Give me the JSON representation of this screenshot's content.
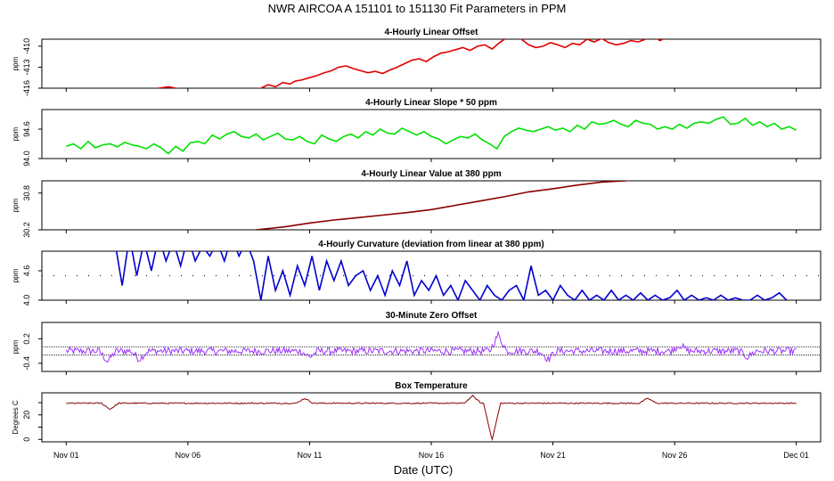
{
  "title": "NWR   AIRCOA A   151101 to 151130   Fit Parameters in PPM",
  "xlabel": "Date (UTC)",
  "colors": {
    "offset": "#e00000",
    "slope": "#00e000",
    "value": "#8b0000",
    "curvature": "#0000d0",
    "zero": "#9b30ff",
    "temp": "#8b0000",
    "axis": "#000000"
  },
  "chart_data": [
    {
      "id": "offset",
      "type": "line",
      "title": "4-Hourly Linear Offset",
      "ylabel": "ppm",
      "yticks": [
        -416,
        -413,
        -410
      ],
      "ytick_labels": [
        "-416",
        "-413",
        "-410"
      ],
      "ylim": [
        -416,
        -409
      ],
      "x": [
        3.5,
        3.8,
        4.2,
        4.5,
        4.8,
        5.0,
        7.5,
        7.7,
        8.0,
        8.3,
        8.6,
        8.9,
        9.2,
        9.4,
        9.7,
        10.0,
        10.3,
        10.6,
        10.9,
        11.2,
        11.5,
        11.8,
        12.1,
        12.4,
        12.7,
        13.0,
        13.3,
        13.6,
        13.9,
        14.2,
        14.5,
        14.8,
        15.1,
        15.4,
        15.7,
        16.0,
        16.3,
        16.6,
        16.9,
        17.2,
        17.5,
        17.8,
        18.1,
        18.4,
        18.7,
        19.0,
        19.3,
        19.6,
        19.9,
        20.2,
        20.5,
        20.8,
        21.1,
        21.4,
        21.7,
        22.0,
        22.3,
        22.6,
        22.9,
        23.2,
        23.5,
        23.8,
        24.1,
        24.4,
        24.7,
        25.0,
        25.5,
        26.0,
        27.0
      ],
      "y": [
        -417,
        -416,
        -415.8,
        -416,
        -416.3,
        -417,
        -417,
        -416.2,
        -416,
        -415.5,
        -415.8,
        -415.2,
        -415.4,
        -415.0,
        -414.8,
        -414.5,
        -414.2,
        -413.8,
        -413.5,
        -413.0,
        -412.8,
        -413.2,
        -413.5,
        -413.8,
        -413.6,
        -413.9,
        -413.4,
        -413.0,
        -412.5,
        -412.0,
        -411.8,
        -412.2,
        -411.5,
        -411.0,
        -410.8,
        -410.5,
        -410.2,
        -410.6,
        -410.0,
        -409.8,
        -410.4,
        -409.5,
        -408.8,
        -408.5,
        -409.0,
        -409.8,
        -410.2,
        -410.0,
        -409.5,
        -409.8,
        -410.2,
        -409.6,
        -409.8,
        -409.0,
        -409.4,
        -408.9,
        -409.5,
        -409.8,
        -409.6,
        -409.2,
        -409.4,
        -409.0,
        -408.5,
        -409.2,
        -408.7,
        -408.3,
        -408.7,
        -408.5,
        -408.9
      ]
    },
    {
      "id": "slope",
      "type": "line",
      "title": "4-Hourly Linear Slope * 50 ppm",
      "ylabel": "ppm",
      "yticks": [
        94.0,
        94.6
      ],
      "ytick_labels": [
        "94.0",
        "94.6"
      ],
      "ylim": [
        94.0,
        95.0
      ],
      "x": [
        0.0,
        0.3,
        0.6,
        0.9,
        1.2,
        1.5,
        1.8,
        2.1,
        2.4,
        2.7,
        3.0,
        3.3,
        3.6,
        3.9,
        4.2,
        4.5,
        4.8,
        5.1,
        5.4,
        5.7,
        6.0,
        6.3,
        6.6,
        6.9,
        7.2,
        7.5,
        7.8,
        8.1,
        8.4,
        8.7,
        9.0,
        9.3,
        9.6,
        9.9,
        10.2,
        10.5,
        10.8,
        11.1,
        11.4,
        11.7,
        12.0,
        12.3,
        12.6,
        12.9,
        13.2,
        13.5,
        13.8,
        14.1,
        14.4,
        14.7,
        15.0,
        15.3,
        15.6,
        15.9,
        16.2,
        16.5,
        16.8,
        17.1,
        17.4,
        17.7,
        18.0,
        18.3,
        18.6,
        18.9,
        19.2,
        19.5,
        19.8,
        20.1,
        20.4,
        20.7,
        21.0,
        21.3,
        21.6,
        21.9,
        22.2,
        22.5,
        22.8,
        23.1,
        23.4,
        23.7,
        24.0,
        24.3,
        24.6,
        24.9,
        25.2,
        25.5,
        25.8,
        26.1,
        26.4,
        26.7,
        27.0,
        27.3,
        27.6,
        27.9,
        28.2,
        28.5,
        28.8,
        29.1,
        29.4,
        29.7,
        30.0
      ],
      "y": [
        94.25,
        94.3,
        94.2,
        94.35,
        94.22,
        94.28,
        94.3,
        94.24,
        94.33,
        94.28,
        94.25,
        94.2,
        94.3,
        94.22,
        94.1,
        94.25,
        94.15,
        94.32,
        94.35,
        94.3,
        94.48,
        94.4,
        94.5,
        94.55,
        94.45,
        94.42,
        94.5,
        94.38,
        94.45,
        94.52,
        94.4,
        94.38,
        94.45,
        94.35,
        94.3,
        94.48,
        94.4,
        94.35,
        94.45,
        94.5,
        94.42,
        94.55,
        94.48,
        94.6,
        94.52,
        94.5,
        94.62,
        94.55,
        94.48,
        94.55,
        94.45,
        94.4,
        94.3,
        94.38,
        94.45,
        94.42,
        94.5,
        94.38,
        94.3,
        94.2,
        94.45,
        94.55,
        94.62,
        94.58,
        94.55,
        94.6,
        94.65,
        94.58,
        94.62,
        94.55,
        94.68,
        94.6,
        94.75,
        94.7,
        94.72,
        94.78,
        94.7,
        94.65,
        94.78,
        94.72,
        94.7,
        94.6,
        94.65,
        94.6,
        94.7,
        94.62,
        94.72,
        94.75,
        94.72,
        94.8,
        94.85,
        94.7,
        94.72,
        94.82,
        94.68,
        94.75,
        94.65,
        94.72,
        94.6,
        94.65,
        94.58
      ]
    },
    {
      "id": "value",
      "type": "line",
      "title": "4-Hourly Linear Value at 380 ppm",
      "ylabel": "ppm",
      "yticks": [
        30.2,
        30.8
      ],
      "ytick_labels": [
        "30.2",
        "30.8"
      ],
      "ylim": [
        30.2,
        31.0
      ],
      "x": [
        7.8,
        9.0,
        10.0,
        11.0,
        12.0,
        13.0,
        14.0,
        15.0,
        16.0,
        17.0,
        18.0,
        19.0,
        20.0,
        21.0,
        22.0,
        23.0,
        24.0
      ],
      "y": [
        30.2,
        30.25,
        30.31,
        30.36,
        30.4,
        30.44,
        30.48,
        30.53,
        30.6,
        30.67,
        30.74,
        30.82,
        30.87,
        30.93,
        30.98,
        31.0,
        31.05
      ]
    },
    {
      "id": "curvature",
      "type": "line",
      "title": "4-Hourly Curvature (deviation from linear at 380 ppm)",
      "ylabel": "ppm",
      "yticks": [
        4.0,
        4.6
      ],
      "ytick_labels": [
        "4.0",
        "4.6"
      ],
      "ylim": [
        4.0,
        5.0
      ],
      "refline": 4.5,
      "x": [
        2.0,
        2.3,
        2.6,
        2.9,
        3.2,
        3.5,
        3.8,
        4.1,
        4.4,
        4.7,
        5.0,
        5.3,
        5.6,
        5.9,
        6.2,
        6.5,
        6.8,
        7.1,
        7.4,
        7.7,
        8.0,
        8.3,
        8.6,
        8.9,
        9.2,
        9.5,
        9.8,
        10.1,
        10.4,
        10.7,
        11.0,
        11.3,
        11.6,
        11.9,
        12.2,
        12.5,
        12.8,
        13.1,
        13.4,
        13.7,
        14.0,
        14.3,
        14.6,
        14.9,
        15.2,
        15.5,
        15.8,
        16.1,
        16.4,
        16.7,
        17.0,
        17.3,
        17.6,
        17.9,
        18.2,
        18.5,
        18.8,
        19.1,
        19.4,
        19.7,
        20.0,
        20.3,
        20.6,
        20.9,
        21.2,
        21.5,
        21.8,
        22.1,
        22.4,
        22.7,
        23.0,
        23.3,
        23.6,
        23.9,
        24.2,
        24.5,
        24.8,
        25.1,
        25.4,
        25.7,
        26.0,
        26.3,
        26.6,
        26.9,
        27.2,
        27.5,
        27.8,
        28.1,
        28.4,
        28.7,
        29.0,
        29.3,
        29.6
      ],
      "y": [
        5.2,
        4.3,
        5.3,
        4.5,
        5.2,
        4.6,
        5.3,
        4.8,
        5.2,
        4.7,
        5.3,
        4.8,
        5.1,
        4.9,
        5.2,
        4.8,
        5.3,
        4.9,
        5.2,
        4.8,
        4.0,
        4.9,
        4.2,
        4.6,
        4.1,
        4.7,
        4.3,
        4.9,
        4.2,
        4.8,
        4.4,
        4.8,
        4.3,
        4.5,
        4.6,
        4.2,
        4.5,
        4.1,
        4.6,
        4.3,
        4.8,
        4.1,
        4.4,
        4.2,
        4.5,
        4.1,
        4.3,
        4.0,
        4.4,
        4.2,
        4.0,
        4.3,
        4.1,
        4.0,
        4.2,
        4.3,
        4.0,
        4.7,
        4.1,
        4.2,
        4.0,
        4.3,
        4.1,
        4.0,
        4.2,
        4.0,
        4.1,
        4.0,
        4.2,
        4.0,
        4.1,
        4.0,
        4.15,
        4.0,
        4.1,
        4.0,
        4.05,
        4.2,
        4.0,
        4.1,
        4.0,
        4.05,
        4.0,
        4.1,
        4.0,
        4.05,
        4.0,
        4.0,
        4.1,
        4.0,
        4.05,
        4.15,
        4.0
      ]
    },
    {
      "id": "zero",
      "type": "line",
      "title": "30-Minute Zero Offset",
      "ylabel": "ppm",
      "yticks": [
        0.2,
        -0.4
      ],
      "ytick_labels": [
        "0.2",
        "-0.4"
      ],
      "ylim": [
        -0.6,
        0.6
      ],
      "reflines": [
        0.0,
        -0.2
      ],
      "baseline": -0.1,
      "noise": 0.09,
      "events": [
        {
          "x": 1.7,
          "dy": -0.25
        },
        {
          "x": 3.0,
          "dy": -0.2
        },
        {
          "x": 10.0,
          "dy": -0.15
        },
        {
          "x": 17.75,
          "dy": 0.4
        },
        {
          "x": 19.8,
          "dy": -0.2
        },
        {
          "x": 25.2,
          "dy": 0.15
        },
        {
          "x": 28.0,
          "dy": -0.15
        }
      ]
    },
    {
      "id": "temp",
      "type": "line",
      "title": "Box Temperature",
      "ylabel": "Degrees C",
      "yticks": [
        0,
        10,
        20,
        30
      ],
      "ytick_labels": [
        "0",
        "",
        "20",
        ""
      ],
      "ylim": [
        -2,
        38
      ],
      "baseline": 29.5,
      "noise": 0.5,
      "events": [
        {
          "x": 1.8,
          "dy": -5
        },
        {
          "x": 9.8,
          "dy": 4
        },
        {
          "x": 16.7,
          "dy": 6
        },
        {
          "x": 17.5,
          "dy": -30
        },
        {
          "x": 23.9,
          "dy": 4
        }
      ]
    }
  ],
  "xaxis": {
    "ticks": [
      0,
      5,
      10,
      15,
      20,
      25,
      30
    ],
    "labels": [
      "Nov 01",
      "Nov 06",
      "Nov 11",
      "Nov 16",
      "Nov 21",
      "Nov 26",
      "Dec 01"
    ],
    "range": [
      -1,
      31
    ]
  }
}
